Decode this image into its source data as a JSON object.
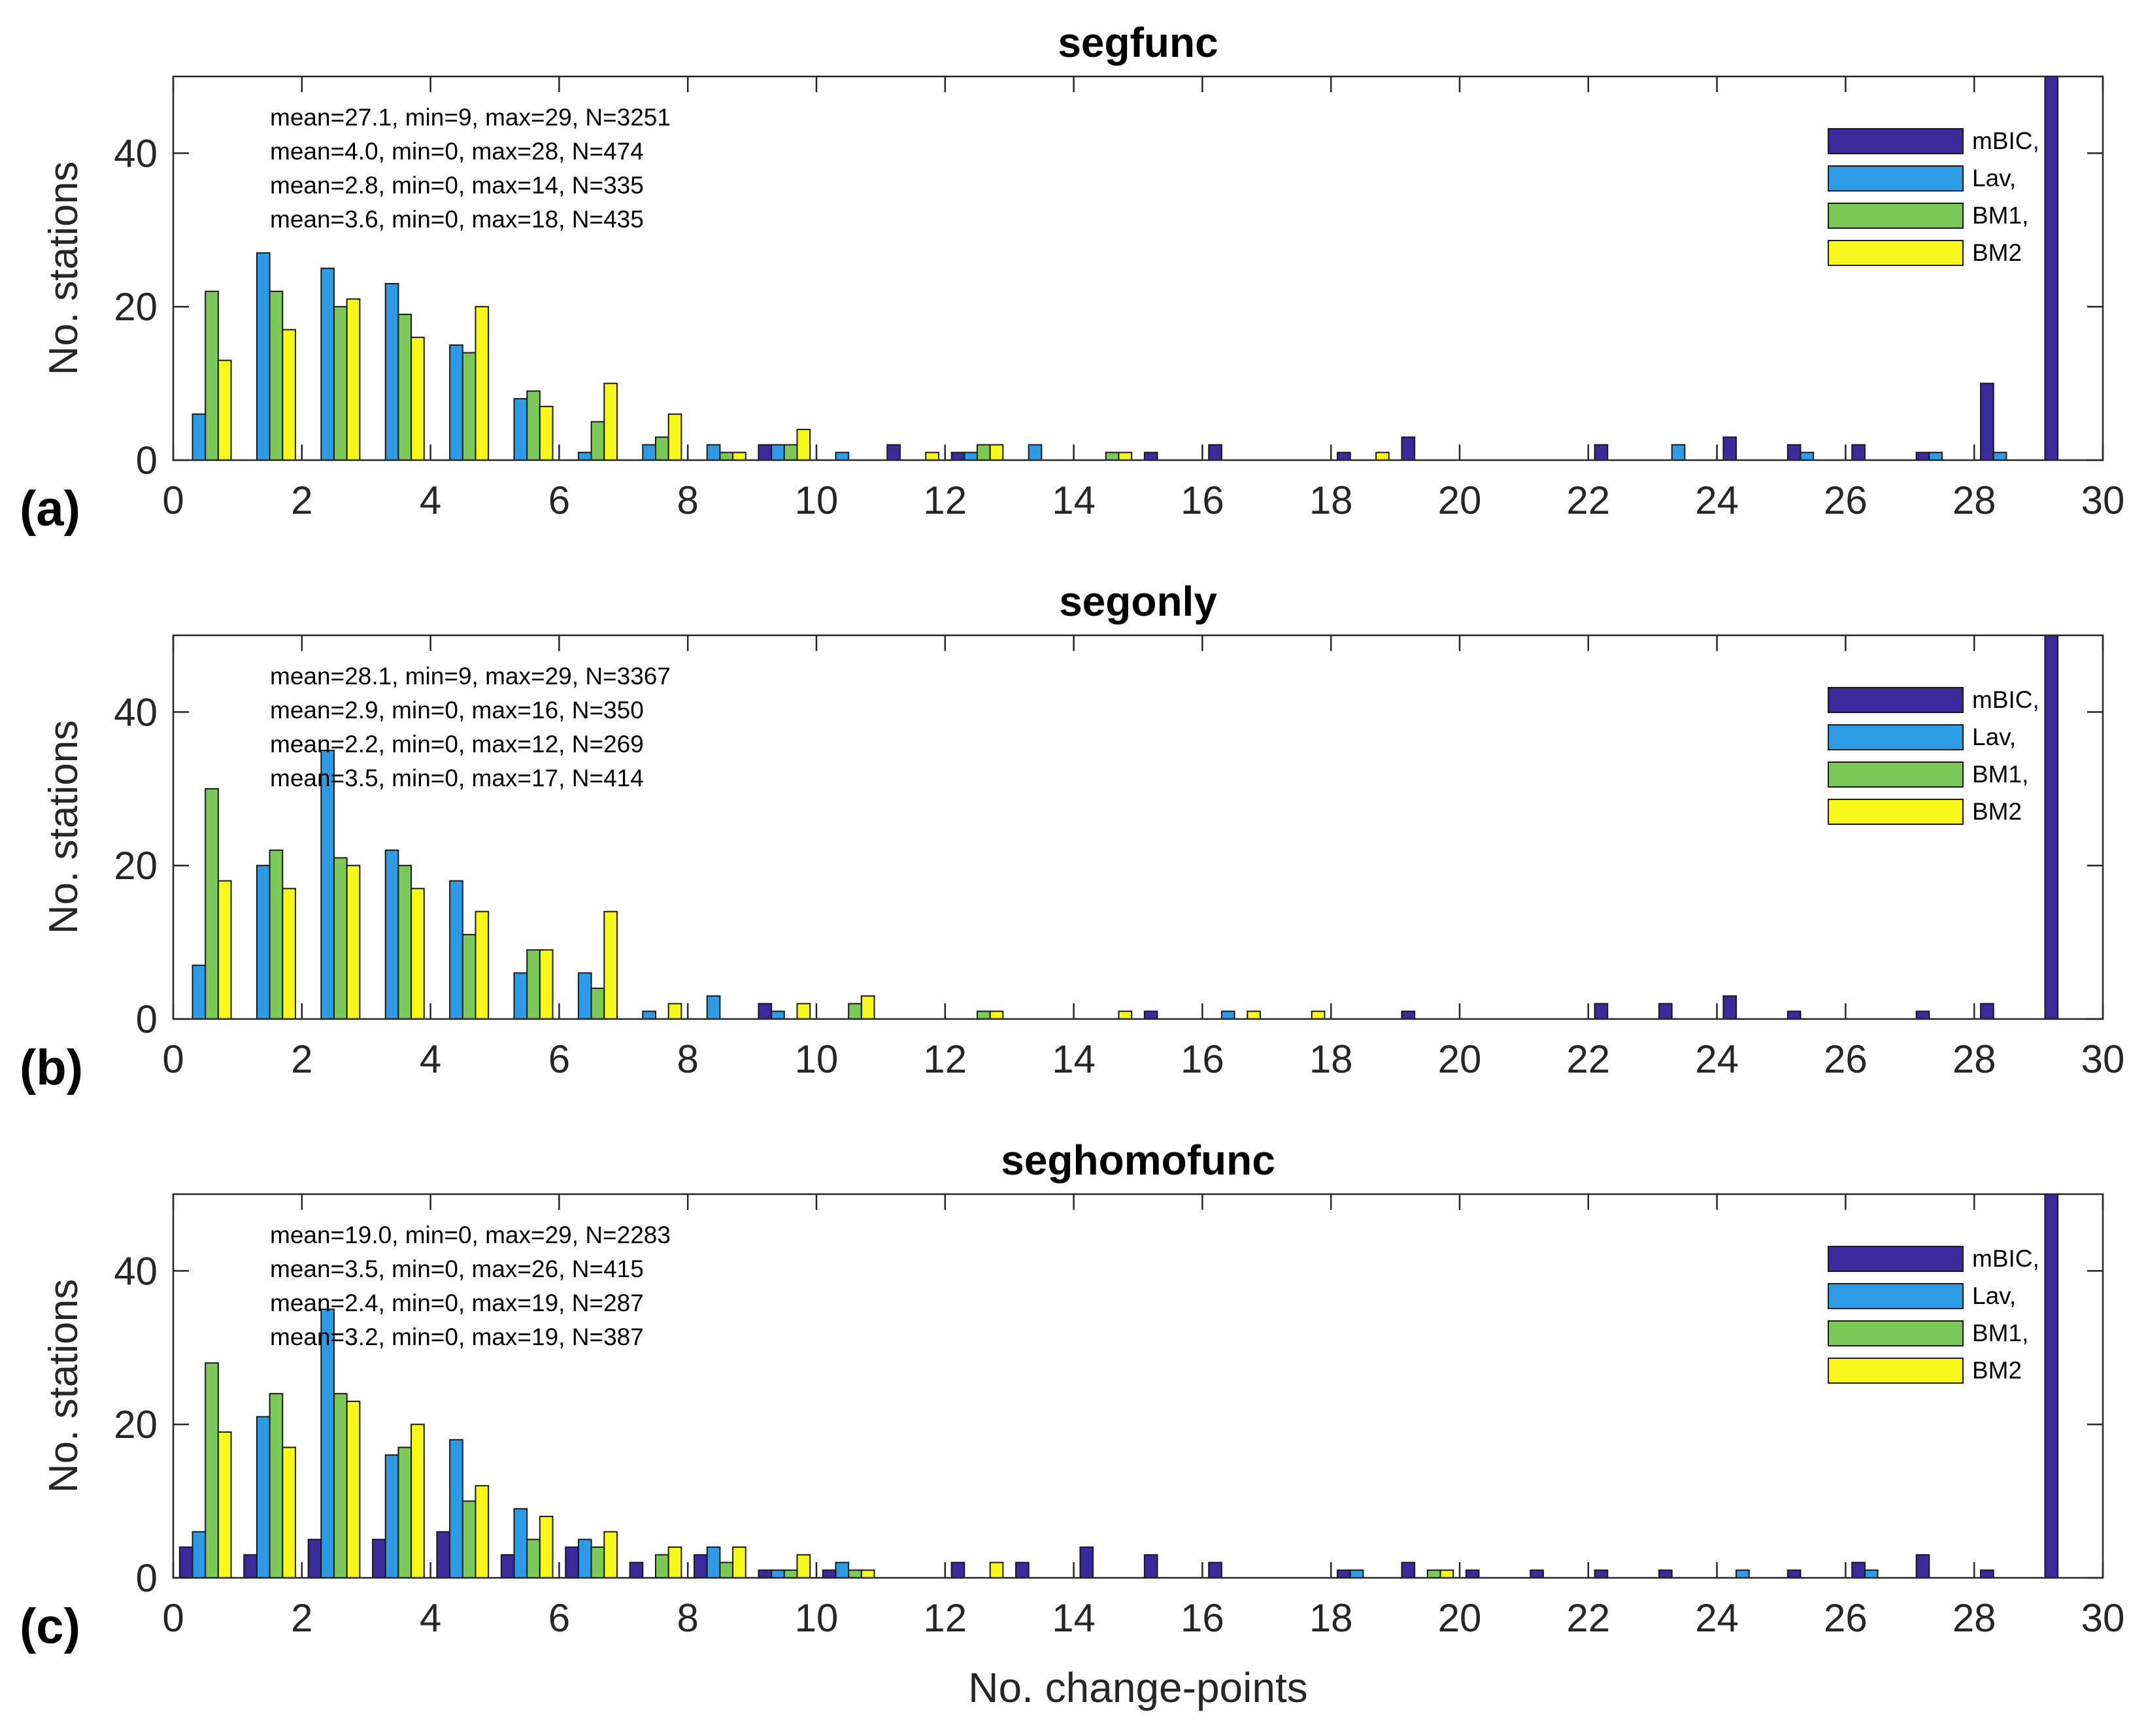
{
  "colors": {
    "mBIC": "#3a2a9c",
    "Lav": "#2f9be6",
    "BM1": "#7cc95a",
    "BM2": "#f7f719",
    "axis": "#262626",
    "edge": "#1a1a1a"
  },
  "chart_data": [
    {
      "type": "bar",
      "title": "segfunc",
      "panel_label": "(a)",
      "xlabel": "",
      "ylabel": "No. stations",
      "xlim": [
        0,
        30
      ],
      "ylim": [
        0,
        50
      ],
      "xticks": [
        "0",
        "2",
        "4",
        "6",
        "8",
        "10",
        "12",
        "14",
        "16",
        "18",
        "20",
        "22",
        "24",
        "26",
        "28",
        "30"
      ],
      "yticks": [
        "0",
        "20",
        "40"
      ],
      "legend_position": "top-right",
      "legend": [
        "mBIC,",
        "Lav,",
        "BM1,",
        "BM2"
      ],
      "annotations": [
        "mean=27.1, min=9, max=29, N=3251",
        "mean=4.0, min=0, max=28, N=474",
        "mean=2.8, min=0, max=14, N=335",
        "mean=3.6, min=0, max=18, N=435"
      ],
      "categories": [
        0,
        1,
        2,
        3,
        4,
        5,
        6,
        7,
        8,
        9,
        10,
        11,
        12,
        13,
        14,
        15,
        16,
        17,
        18,
        19,
        20,
        21,
        22,
        23,
        24,
        25,
        26,
        27,
        28,
        29
      ],
      "series": [
        {
          "name": "mBIC",
          "values": [
            0,
            0,
            0,
            0,
            0,
            0,
            0,
            0,
            0,
            2,
            0,
            2,
            1,
            0,
            0,
            1,
            2,
            0,
            1,
            3,
            0,
            0,
            2,
            0,
            3,
            2,
            2,
            1,
            10,
            60
          ]
        },
        {
          "name": "Lav",
          "values": [
            6,
            27,
            25,
            23,
            15,
            8,
            1,
            2,
            2,
            2,
            1,
            0,
            1,
            2,
            0,
            0,
            0,
            0,
            0,
            0,
            0,
            0,
            0,
            2,
            0,
            1,
            0,
            1,
            1,
            0
          ]
        },
        {
          "name": "BM1",
          "values": [
            22,
            22,
            20,
            19,
            14,
            9,
            5,
            3,
            1,
            2,
            0,
            0,
            2,
            0,
            1,
            0,
            0,
            0,
            0,
            0,
            0,
            0,
            0,
            0,
            0,
            0,
            0,
            0,
            0,
            0
          ]
        },
        {
          "name": "BM2",
          "values": [
            13,
            17,
            21,
            16,
            20,
            7,
            10,
            6,
            1,
            4,
            0,
            1,
            2,
            0,
            1,
            0,
            0,
            0,
            1,
            0,
            0,
            0,
            0,
            0,
            0,
            0,
            0,
            0,
            0,
            0
          ]
        }
      ]
    },
    {
      "type": "bar",
      "title": "segonly",
      "panel_label": "(b)",
      "xlabel": "",
      "ylabel": "No. stations",
      "xlim": [
        0,
        30
      ],
      "ylim": [
        0,
        50
      ],
      "xticks": [
        "0",
        "2",
        "4",
        "6",
        "8",
        "10",
        "12",
        "14",
        "16",
        "18",
        "20",
        "22",
        "24",
        "26",
        "28",
        "30"
      ],
      "yticks": [
        "0",
        "20",
        "40"
      ],
      "legend_position": "top-right",
      "legend": [
        "mBIC,",
        "Lav,",
        "BM1,",
        "BM2"
      ],
      "annotations": [
        "mean=28.1, min=9, max=29, N=3367",
        "mean=2.9, min=0, max=16, N=350",
        "mean=2.2, min=0, max=12, N=269",
        "mean=3.5, min=0, max=17, N=414"
      ],
      "categories": [
        0,
        1,
        2,
        3,
        4,
        5,
        6,
        7,
        8,
        9,
        10,
        11,
        12,
        13,
        14,
        15,
        16,
        17,
        18,
        19,
        20,
        21,
        22,
        23,
        24,
        25,
        26,
        27,
        28,
        29
      ],
      "series": [
        {
          "name": "mBIC",
          "values": [
            0,
            0,
            0,
            0,
            0,
            0,
            0,
            0,
            0,
            2,
            0,
            0,
            0,
            0,
            0,
            1,
            0,
            0,
            0,
            1,
            0,
            0,
            2,
            2,
            3,
            1,
            0,
            1,
            2,
            60
          ]
        },
        {
          "name": "Lav",
          "values": [
            7,
            20,
            35,
            22,
            18,
            6,
            6,
            1,
            3,
            1,
            0,
            0,
            0,
            0,
            0,
            0,
            1,
            0,
            0,
            0,
            0,
            0,
            0,
            0,
            0,
            0,
            0,
            0,
            0,
            0
          ]
        },
        {
          "name": "BM1",
          "values": [
            30,
            22,
            21,
            20,
            11,
            9,
            4,
            0,
            0,
            0,
            2,
            0,
            1,
            0,
            0,
            0,
            0,
            0,
            0,
            0,
            0,
            0,
            0,
            0,
            0,
            0,
            0,
            0,
            0,
            0
          ]
        },
        {
          "name": "BM2",
          "values": [
            18,
            17,
            20,
            17,
            14,
            9,
            14,
            2,
            0,
            2,
            3,
            0,
            1,
            0,
            1,
            0,
            1,
            1,
            0,
            0,
            0,
            0,
            0,
            0,
            0,
            0,
            0,
            0,
            0,
            0
          ]
        }
      ]
    },
    {
      "type": "bar",
      "title": "seghomofunc",
      "panel_label": "(c)",
      "xlabel": "No. change-points",
      "ylabel": "No. stations",
      "xlim": [
        0,
        30
      ],
      "ylim": [
        0,
        50
      ],
      "xticks": [
        "0",
        "2",
        "4",
        "6",
        "8",
        "10",
        "12",
        "14",
        "16",
        "18",
        "20",
        "22",
        "24",
        "26",
        "28",
        "30"
      ],
      "yticks": [
        "0",
        "20",
        "40"
      ],
      "legend_position": "top-right",
      "legend": [
        "mBIC,",
        "Lav,",
        "BM1,",
        "BM2"
      ],
      "annotations": [
        "mean=19.0, min=0, max=29, N=2283",
        "mean=3.5, min=0, max=26, N=415",
        "mean=2.4, min=0, max=19, N=287",
        "mean=3.2, min=0, max=19, N=387"
      ],
      "categories": [
        0,
        1,
        2,
        3,
        4,
        5,
        6,
        7,
        8,
        9,
        10,
        11,
        12,
        13,
        14,
        15,
        16,
        17,
        18,
        19,
        20,
        21,
        22,
        23,
        24,
        25,
        26,
        27,
        28,
        29
      ],
      "series": [
        {
          "name": "mBIC",
          "values": [
            4,
            3,
            5,
            5,
            6,
            3,
            4,
            2,
            3,
            1,
            1,
            0,
            2,
            2,
            4,
            3,
            2,
            0,
            1,
            2,
            1,
            1,
            1,
            1,
            0,
            1,
            2,
            3,
            1,
            60
          ]
        },
        {
          "name": "Lav",
          "values": [
            6,
            21,
            35,
            16,
            18,
            9,
            5,
            0,
            4,
            1,
            2,
            0,
            0,
            0,
            0,
            0,
            0,
            0,
            1,
            0,
            0,
            0,
            0,
            0,
            1,
            0,
            1,
            0,
            0,
            0
          ]
        },
        {
          "name": "BM1",
          "values": [
            28,
            24,
            24,
            17,
            10,
            5,
            4,
            3,
            2,
            1,
            1,
            0,
            0,
            0,
            0,
            0,
            0,
            0,
            0,
            1,
            0,
            0,
            0,
            0,
            0,
            0,
            0,
            0,
            0,
            0
          ]
        },
        {
          "name": "BM2",
          "values": [
            19,
            17,
            23,
            20,
            12,
            8,
            6,
            4,
            4,
            3,
            1,
            0,
            2,
            0,
            0,
            0,
            0,
            0,
            0,
            1,
            0,
            0,
            0,
            0,
            0,
            0,
            0,
            0,
            0,
            0
          ]
        }
      ]
    }
  ]
}
